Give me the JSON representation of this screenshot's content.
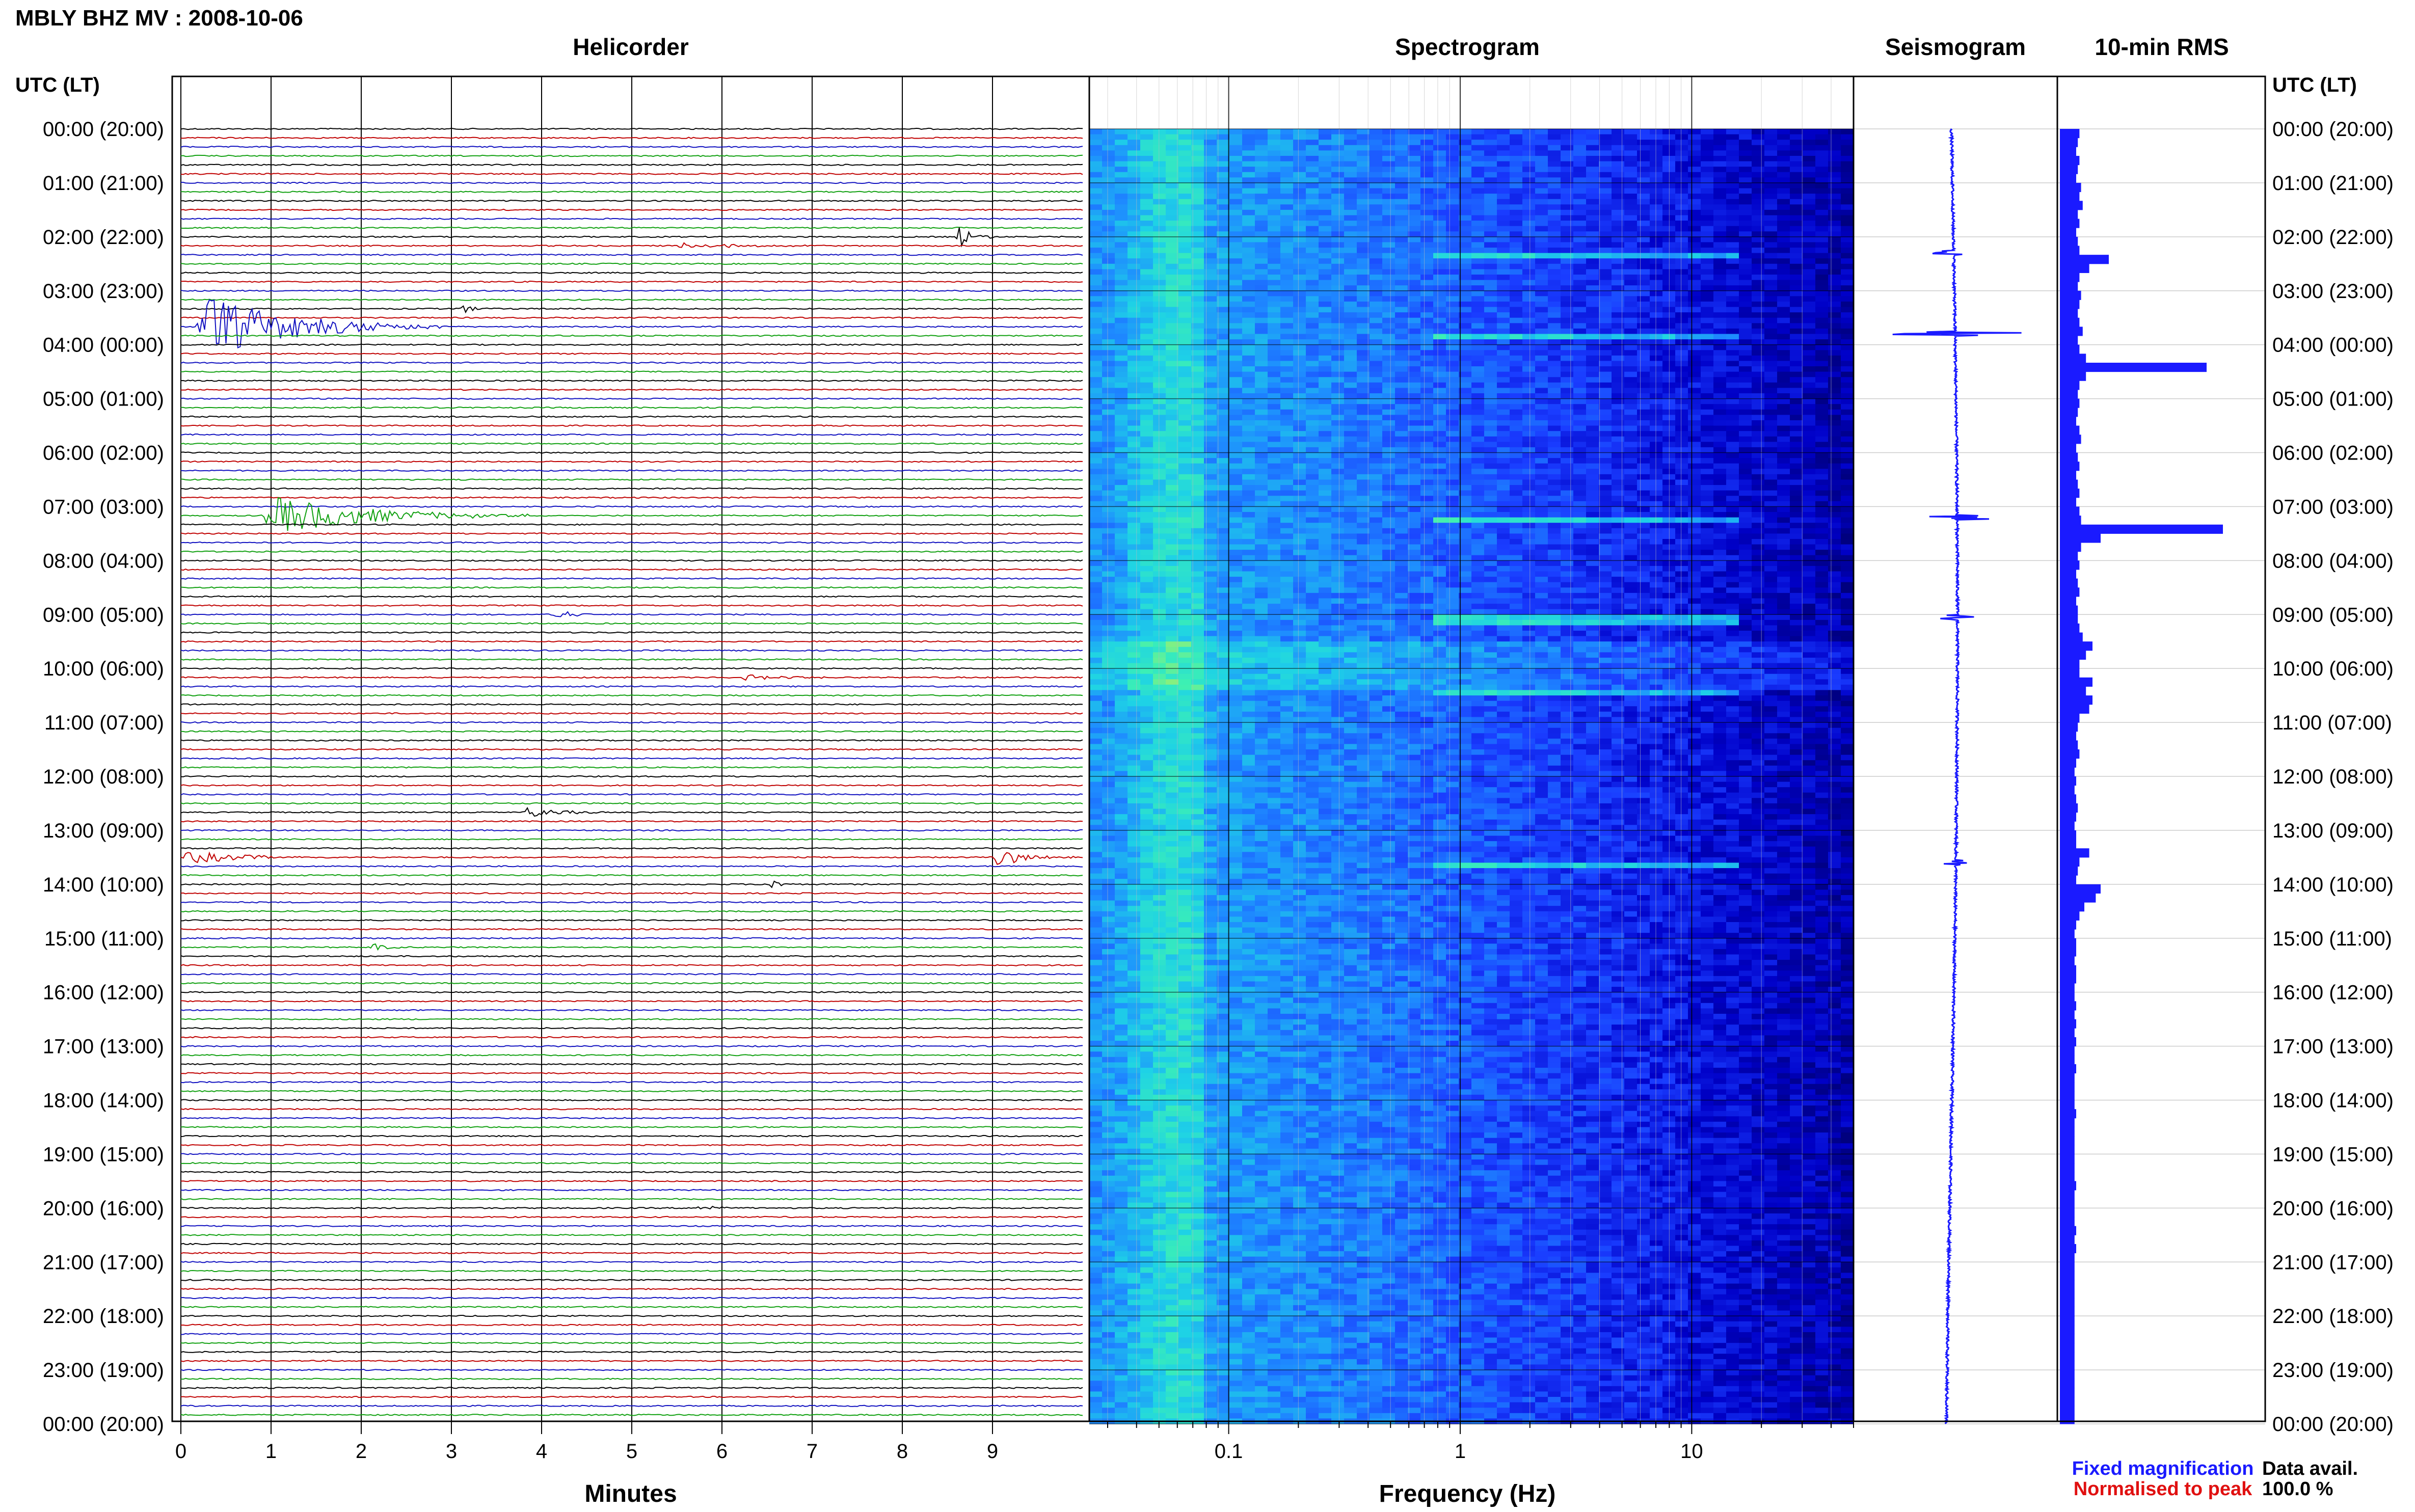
{
  "header": {
    "title": "MBLY BHZ MV : 2008-10-06",
    "utc_label_left": "UTC (LT)",
    "utc_label_right": "UTC (LT)"
  },
  "panels": {
    "helicorder": "Helicorder",
    "spectrogram": "Spectrogram",
    "seismogram": "Seismogram",
    "rms": "10-min RMS"
  },
  "axes": {
    "minutes_label": "Minutes",
    "minutes_ticks": [
      "0",
      "1",
      "2",
      "3",
      "4",
      "5",
      "6",
      "7",
      "8",
      "9"
    ],
    "frequency_label": "Frequency (Hz)",
    "frequency_ticks": [
      "0.1",
      "1",
      "10"
    ]
  },
  "legend": {
    "fixed": "Fixed magnification",
    "normalised": "Normalised to peak",
    "fixed_color": "#1a1aff",
    "normalised_color": "#e01010"
  },
  "data_avail": {
    "label": "Data avail.",
    "value": "100.0 %"
  },
  "time_labels": [
    "00:00 (20:00)",
    "01:00 (21:00)",
    "02:00 (22:00)",
    "03:00 (23:00)",
    "04:00 (00:00)",
    "05:00 (01:00)",
    "06:00 (02:00)",
    "07:00 (03:00)",
    "08:00 (04:00)",
    "09:00 (05:00)",
    "10:00 (06:00)",
    "11:00 (07:00)",
    "12:00 (08:00)",
    "13:00 (09:00)",
    "14:00 (10:00)",
    "15:00 (11:00)",
    "16:00 (12:00)",
    "17:00 (13:00)",
    "18:00 (14:00)",
    "19:00 (15:00)",
    "20:00 (16:00)",
    "21:00 (17:00)",
    "22:00 (18:00)",
    "23:00 (19:00)",
    "00:00 (20:00)"
  ],
  "trace_colors": [
    "#000000",
    "#c00000",
    "#1010c0",
    "#10a010"
  ],
  "chart_data": {
    "type": "heatmap",
    "title": "MBLY BHZ MV : 2008-10-06",
    "helicorder": {
      "minutes_per_line": 10,
      "lines": 144,
      "xlim": [
        0,
        10
      ],
      "xlabel": "Minutes",
      "events": [
        {
          "hour": 2.1,
          "minute": 8.6,
          "amp": 0.9,
          "dur": 0.5
        },
        {
          "hour": 2.2,
          "minute": 5.5,
          "amp": 0.3,
          "dur": 1.5
        },
        {
          "hour": 3.35,
          "minute": 3.1,
          "amp": 0.4,
          "dur": 0.4
        },
        {
          "hour": 3.8,
          "minute": 0.15,
          "amp": 2.5,
          "dur": 2.8
        },
        {
          "hour": 7.2,
          "minute": 0.9,
          "amp": 1.6,
          "dur": 3.0
        },
        {
          "hour": 9.0,
          "minute": 4.1,
          "amp": 0.6,
          "dur": 0.5
        },
        {
          "hour": 10.3,
          "minute": 6.2,
          "amp": 0.25,
          "dur": 1.2
        },
        {
          "hour": 12.8,
          "minute": 3.8,
          "amp": 0.4,
          "dur": 1.0
        },
        {
          "hour": 13.5,
          "minute": 0.0,
          "amp": 0.5,
          "dur": 1.8
        },
        {
          "hour": 13.5,
          "minute": 9.0,
          "amp": 0.7,
          "dur": 1.0
        },
        {
          "hour": 14.1,
          "minute": 6.5,
          "amp": 0.5,
          "dur": 0.3
        },
        {
          "hour": 15.3,
          "minute": 2.1,
          "amp": 0.4,
          "dur": 0.4
        },
        {
          "hour": 20.1,
          "minute": 5.7,
          "amp": 0.3,
          "dur": 0.6
        }
      ]
    },
    "spectrogram": {
      "xscale": "log",
      "xlim": [
        0.025,
        50
      ],
      "xlabel": "Frequency (Hz)",
      "colormap": [
        "#00006e",
        "#0000c8",
        "#1a3cff",
        "#1e8cff",
        "#1ed2e6",
        "#3cf0b4",
        "#c8f050"
      ],
      "rows": 240,
      "events_hours": [
        2.3,
        3.8,
        7.2,
        9.05,
        10.4,
        13.6
      ],
      "high_noise_hours": [
        9.8,
        10.0
      ]
    },
    "seismogram": {
      "type": "line",
      "ylim": [
        0,
        24
      ],
      "spikes": [
        {
          "hour": 2.3,
          "amp": 0.25
        },
        {
          "hour": 3.8,
          "amp": 0.9
        },
        {
          "hour": 7.2,
          "amp": 0.6
        },
        {
          "hour": 9.05,
          "amp": 0.2
        },
        {
          "hour": 13.6,
          "amp": 0.15
        }
      ]
    },
    "rms": {
      "type": "bar",
      "bins_per_hour": 6,
      "ylim": [
        0,
        24
      ],
      "values": [
        0.12,
        0.11,
        0.1,
        0.12,
        0.11,
        0.1,
        0.13,
        0.12,
        0.14,
        0.11,
        0.12,
        0.1,
        0.11,
        0.12,
        0.3,
        0.18,
        0.12,
        0.11,
        0.13,
        0.12,
        0.11,
        0.12,
        0.14,
        0.11,
        0.12,
        0.16,
        0.9,
        0.16,
        0.12,
        0.11,
        0.12,
        0.11,
        0.1,
        0.12,
        0.13,
        0.1,
        0.11,
        0.12,
        0.1,
        0.11,
        0.12,
        0.1,
        0.12,
        0.13,
        1.0,
        0.25,
        0.13,
        0.11,
        0.12,
        0.1,
        0.11,
        0.12,
        0.1,
        0.11,
        0.11,
        0.12,
        0.14,
        0.2,
        0.16,
        0.12,
        0.12,
        0.2,
        0.16,
        0.2,
        0.18,
        0.12,
        0.11,
        0.1,
        0.11,
        0.12,
        0.1,
        0.09,
        0.1,
        0.09,
        0.1,
        0.11,
        0.1,
        0.09,
        0.1,
        0.1,
        0.18,
        0.12,
        0.11,
        0.1,
        0.25,
        0.22,
        0.15,
        0.12,
        0.1,
        0.09,
        0.1,
        0.1,
        0.09,
        0.1,
        0.1,
        0.09,
        0.09,
        0.1,
        0.09,
        0.1,
        0.09,
        0.1,
        0.09,
        0.09,
        0.1,
        0.09,
        0.09,
        0.09,
        0.09,
        0.1,
        0.09,
        0.09,
        0.09,
        0.09,
        0.09,
        0.09,
        0.09,
        0.1,
        0.09,
        0.09,
        0.09,
        0.09,
        0.1,
        0.09,
        0.1,
        0.09,
        0.09,
        0.09,
        0.09,
        0.09,
        0.09,
        0.09,
        0.09,
        0.09,
        0.09,
        0.09,
        0.09,
        0.09,
        0.09,
        0.09,
        0.09,
        0.09,
        0.09,
        0.09
      ]
    }
  }
}
